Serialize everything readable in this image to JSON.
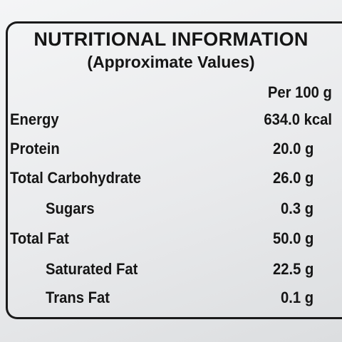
{
  "header": {
    "title": "NUTRITIONAL INFORMATION",
    "subtitle": "(Approximate Values)"
  },
  "table": {
    "column_header": "Per 100 g",
    "rows": [
      [
        "Energy",
        "634.0 kcal"
      ],
      [
        "Protein",
        "20.0 g"
      ],
      [
        "Total Carbohydrate",
        "26.0 g"
      ],
      [
        "Sugars",
        "0.3 g"
      ],
      [
        "Total Fat",
        "50.0 g"
      ],
      [
        "Saturated Fat",
        "22.5 g"
      ],
      [
        "Trans Fat",
        "0.1 g"
      ]
    ]
  }
}
